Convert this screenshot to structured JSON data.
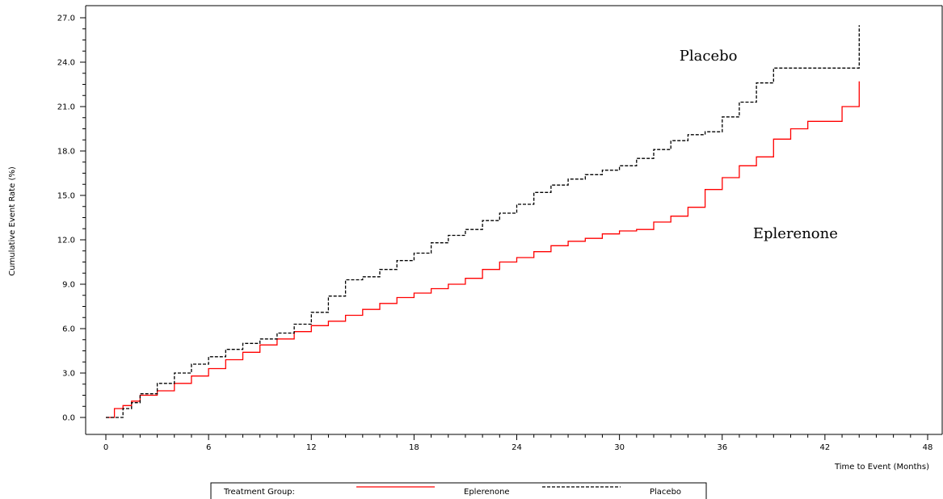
{
  "chart_data": {
    "type": "line",
    "title": "",
    "xlabel": "Time to Event (Months)",
    "ylabel": "Cumulative Event Rate (%)",
    "xlim": [
      0,
      48
    ],
    "ylim": [
      0,
      27
    ],
    "xticks": [
      0,
      6,
      12,
      18,
      24,
      30,
      36,
      42,
      48
    ],
    "yticks": [
      0,
      3,
      6,
      9,
      12,
      15,
      18,
      21,
      24,
      27
    ],
    "xtick_labels": [
      "0",
      "6",
      "12",
      "18",
      "24",
      "30",
      "36",
      "42",
      "48"
    ],
    "ytick_labels": [
      "0.0",
      "3.0",
      "6.0",
      "9.0",
      "12.0",
      "15.0",
      "18.0",
      "21.0",
      "24.0",
      "27.0"
    ],
    "grid": false,
    "legend": {
      "title": "Treatment Group:",
      "placement": "bottom",
      "entries": [
        "Eplerenone",
        "Placebo"
      ]
    },
    "annotations": [
      {
        "text": "Placebo",
        "x": 33.5,
        "y": 24.1
      },
      {
        "text": "Eplerenone",
        "x": 37.8,
        "y": 12.1
      }
    ],
    "series": [
      {
        "name": "Eplerenone",
        "color": "#ff0000",
        "dash": "solid",
        "x": [
          0,
          0.5,
          1,
          1.5,
          2,
          3,
          4,
          5,
          6,
          7,
          8,
          9,
          10,
          11,
          12,
          13,
          14,
          15,
          16,
          17,
          18,
          19,
          20,
          21,
          22,
          23,
          24,
          25,
          26,
          27,
          28,
          29,
          30,
          31,
          32,
          33,
          34,
          35,
          36,
          37,
          38,
          39,
          40,
          41,
          42,
          43,
          44,
          44
        ],
        "y": [
          0,
          0.6,
          0.8,
          1.1,
          1.5,
          1.8,
          2.3,
          2.8,
          3.3,
          3.9,
          4.4,
          4.9,
          5.3,
          5.8,
          6.2,
          6.5,
          6.9,
          7.3,
          7.7,
          8.1,
          8.4,
          8.7,
          9.0,
          9.4,
          10.0,
          10.5,
          10.8,
          11.2,
          11.6,
          11.9,
          12.1,
          12.4,
          12.6,
          12.7,
          13.2,
          13.6,
          14.2,
          15.4,
          16.2,
          17.0,
          17.6,
          18.8,
          19.5,
          20.0,
          20.0,
          21.0,
          21.0,
          22.7
        ]
      },
      {
        "name": "Placebo",
        "color": "#000000",
        "dash": "dashed",
        "x": [
          0,
          0.5,
          1,
          1.5,
          2,
          3,
          4,
          5,
          6,
          7,
          8,
          9,
          10,
          11,
          12,
          13,
          14,
          15,
          16,
          17,
          18,
          19,
          20,
          21,
          22,
          23,
          24,
          25,
          26,
          27,
          28,
          29,
          30,
          31,
          32,
          33,
          34,
          35,
          36,
          37,
          38,
          39,
          40,
          41,
          42,
          43,
          44,
          44
        ],
        "y": [
          0,
          0,
          0.6,
          1.0,
          1.6,
          2.3,
          3.0,
          3.6,
          4.1,
          4.6,
          5.0,
          5.3,
          5.7,
          6.3,
          7.1,
          8.2,
          9.3,
          9.5,
          10.0,
          10.6,
          11.1,
          11.8,
          12.3,
          12.7,
          13.3,
          13.8,
          14.4,
          15.2,
          15.7,
          16.1,
          16.4,
          16.7,
          17.0,
          17.5,
          18.1,
          18.7,
          19.1,
          19.3,
          20.3,
          21.3,
          22.6,
          23.6,
          23.6,
          23.6,
          23.6,
          23.6,
          24.8,
          26.5
        ]
      }
    ]
  }
}
